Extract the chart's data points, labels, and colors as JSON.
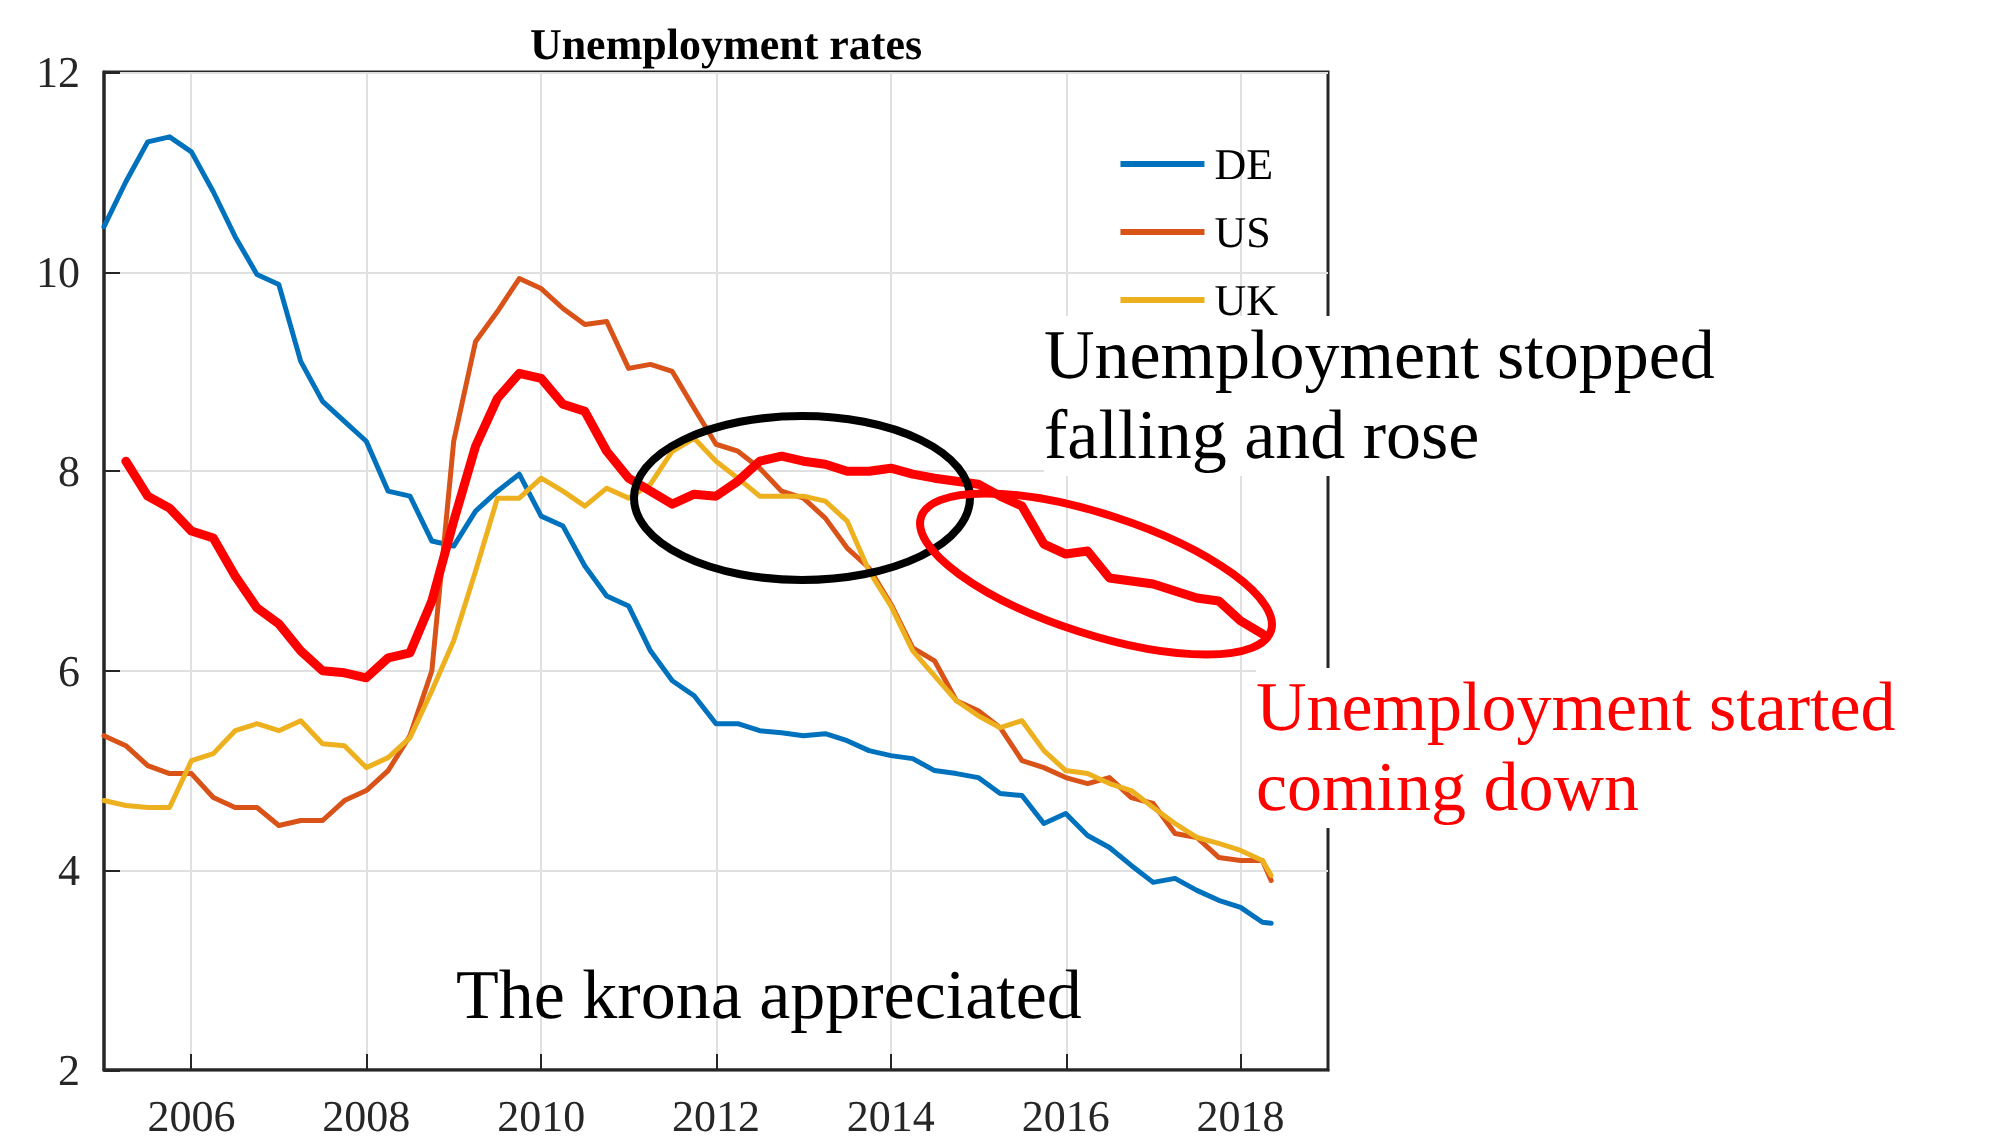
{
  "chart_data": {
    "type": "line",
    "title": "Unemployment rates",
    "x": [
      2005,
      2005.25,
      2005.5,
      2005.75,
      2006,
      2006.25,
      2006.5,
      2006.75,
      2007,
      2007.25,
      2007.5,
      2007.75,
      2008,
      2008.25,
      2008.5,
      2008.75,
      2009,
      2009.25,
      2009.5,
      2009.75,
      2010,
      2010.25,
      2010.5,
      2010.75,
      2011,
      2011.25,
      2011.5,
      2011.75,
      2012,
      2012.25,
      2012.5,
      2012.75,
      2013,
      2013.25,
      2013.5,
      2013.75,
      2014,
      2014.25,
      2014.5,
      2014.75,
      2015,
      2015.25,
      2015.5,
      2015.75,
      2016,
      2016.25,
      2016.5,
      2016.75,
      2017,
      2017.25,
      2017.5,
      2017.75,
      2018,
      2018.25,
      2018.35
    ],
    "series": [
      {
        "name": "DE",
        "color": "#0072bd",
        "values": [
          10.45,
          10.9,
          11.3,
          11.35,
          11.2,
          10.8,
          10.35,
          9.97,
          9.87,
          9.1,
          8.7,
          8.5,
          8.3,
          7.8,
          7.75,
          7.3,
          7.25,
          7.6,
          7.8,
          7.97,
          7.55,
          7.45,
          7.05,
          6.75,
          6.65,
          6.2,
          5.9,
          5.75,
          5.47,
          5.47,
          5.4,
          5.38,
          5.35,
          5.37,
          5.3,
          5.2,
          5.15,
          5.12,
          5,
          4.97,
          4.93,
          4.77,
          4.75,
          4.47,
          4.57,
          4.35,
          4.23,
          4.05,
          3.88,
          3.92,
          3.8,
          3.7,
          3.63,
          3.48,
          3.47
        ]
      },
      {
        "name": "US",
        "color": "#d95319",
        "values": [
          5.35,
          5.25,
          5.05,
          4.97,
          4.97,
          4.73,
          4.63,
          4.63,
          4.45,
          4.5,
          4.5,
          4.7,
          4.8,
          5,
          5.35,
          6,
          8.3,
          9.3,
          9.6,
          9.93,
          9.83,
          9.63,
          9.47,
          9.5,
          9.03,
          9.07,
          9,
          8.63,
          8.27,
          8.2,
          8.03,
          7.8,
          7.73,
          7.53,
          7.23,
          7.03,
          6.67,
          6.23,
          6.1,
          5.7,
          5.6,
          5.43,
          5.1,
          5.03,
          4.93,
          4.87,
          4.93,
          4.73,
          4.67,
          4.37,
          4.33,
          4.13,
          4.1,
          4.1,
          3.9
        ]
      },
      {
        "name": "UK",
        "color": "#edb120",
        "values": [
          4.7,
          4.65,
          4.63,
          4.63,
          5.1,
          5.17,
          5.4,
          5.47,
          5.4,
          5.5,
          5.27,
          5.25,
          5.03,
          5.13,
          5.33,
          5.8,
          6.3,
          7,
          7.73,
          7.73,
          7.93,
          7.8,
          7.65,
          7.83,
          7.73,
          7.87,
          8.2,
          8.33,
          8.1,
          7.93,
          7.75,
          7.75,
          7.75,
          7.7,
          7.5,
          7,
          6.65,
          6.2,
          5.95,
          5.7,
          5.55,
          5.43,
          5.5,
          5.2,
          5,
          4.97,
          4.87,
          4.8,
          4.63,
          4.47,
          4.33,
          4.27,
          4.2,
          4.1,
          3.95
        ]
      },
      {
        "color": "#ff0000",
        "values": [
          null,
          8.1,
          7.75,
          7.63,
          7.4,
          7.33,
          6.95,
          6.63,
          6.47,
          6.2,
          6,
          5.98,
          5.93,
          6.13,
          6.18,
          6.7,
          7.5,
          8.25,
          8.73,
          8.98,
          8.93,
          8.67,
          8.6,
          8.2,
          7.93,
          7.8,
          7.67,
          7.77,
          7.75,
          7.9,
          8.1,
          8.15,
          8.1,
          8.07,
          8,
          8,
          8.03,
          7.97,
          7.93,
          7.9,
          7.87,
          7.75,
          7.65,
          7.27,
          7.17,
          7.2,
          6.93,
          6.9,
          6.87,
          6.8,
          6.73,
          6.7,
          6.5,
          6.37,
          null
        ]
      }
    ],
    "xlim": [
      2005,
      2019
    ],
    "xticks": [
      2006,
      2008,
      2010,
      2012,
      2014,
      2016,
      2018
    ],
    "ylim": [
      2,
      12
    ],
    "yticks": [
      2,
      4,
      6,
      8,
      10,
      12
    ],
    "grid": true,
    "legend": "top right",
    "marker": "none",
    "line_style": "solid",
    "annotations": [
      "Unemployment stopped falling and rose",
      "Unemployment started coming down",
      "The krona appreciated"
    ]
  }
}
